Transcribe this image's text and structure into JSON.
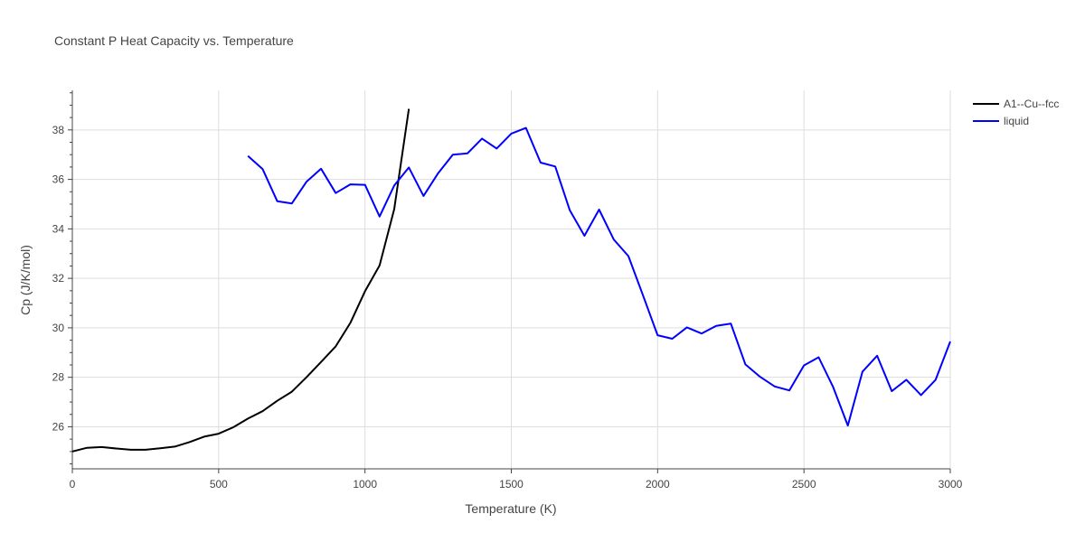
{
  "chart_data": {
    "type": "line",
    "title": "Constant P Heat Capacity vs. Temperature",
    "xlabel": "Temperature (K)",
    "ylabel": "Cp (J/K/mol)",
    "xlim": [
      0,
      3000
    ],
    "ylim": [
      24.3,
      39.6
    ],
    "x_ticks": [
      0,
      500,
      1000,
      1500,
      2000,
      2500,
      3000
    ],
    "x_tick_labels": [
      "0",
      "500",
      "1000",
      "1500",
      "2000",
      "2500",
      "3000"
    ],
    "y_ticks": [
      26,
      28,
      30,
      32,
      34,
      36,
      38
    ],
    "y_tick_labels": [
      "26",
      "28",
      "30",
      "32",
      "34",
      "36",
      "38"
    ],
    "grid": true,
    "legend_position": "top-right",
    "series": [
      {
        "name": "A1--Cu--fcc",
        "color": "#000000",
        "x": [
          0,
          50,
          100,
          150,
          200,
          250,
          300,
          350,
          400,
          450,
          500,
          550,
          600,
          650,
          700,
          750,
          800,
          850,
          900,
          950,
          1000,
          1050,
          1100,
          1150
        ],
        "y": [
          25.0,
          25.15,
          25.18,
          25.12,
          25.07,
          25.07,
          25.13,
          25.2,
          25.38,
          25.6,
          25.72,
          25.98,
          26.33,
          26.63,
          27.05,
          27.42,
          28.0,
          28.62,
          29.25,
          30.2,
          31.48,
          32.52,
          34.8,
          38.85
        ]
      },
      {
        "name": "liquid",
        "color": "#0000ff",
        "x": [
          600,
          650,
          700,
          750,
          800,
          850,
          900,
          950,
          1000,
          1050,
          1100,
          1150,
          1200,
          1250,
          1300,
          1350,
          1400,
          1450,
          1500,
          1550,
          1600,
          1650,
          1700,
          1750,
          1800,
          1850,
          1900,
          1950,
          2000,
          2050,
          2100,
          2150,
          2200,
          2250,
          2300,
          2350,
          2400,
          2450,
          2500,
          2550,
          2600,
          2650,
          2700,
          2750,
          2800,
          2850,
          2900,
          2950,
          3000
        ],
        "y": [
          36.95,
          36.42,
          35.12,
          35.03,
          35.9,
          36.43,
          35.45,
          35.8,
          35.78,
          34.5,
          35.75,
          36.48,
          35.33,
          36.25,
          37.0,
          37.05,
          37.65,
          37.25,
          37.85,
          38.08,
          36.68,
          36.52,
          34.75,
          33.72,
          34.78,
          33.57,
          32.9,
          31.32,
          29.7,
          29.56,
          30.02,
          29.77,
          30.08,
          30.17,
          28.52,
          28.02,
          27.63,
          27.47,
          28.48,
          28.81,
          27.6,
          26.05,
          28.23,
          28.87,
          27.44,
          27.9,
          27.28,
          27.9,
          29.45
        ]
      }
    ]
  }
}
